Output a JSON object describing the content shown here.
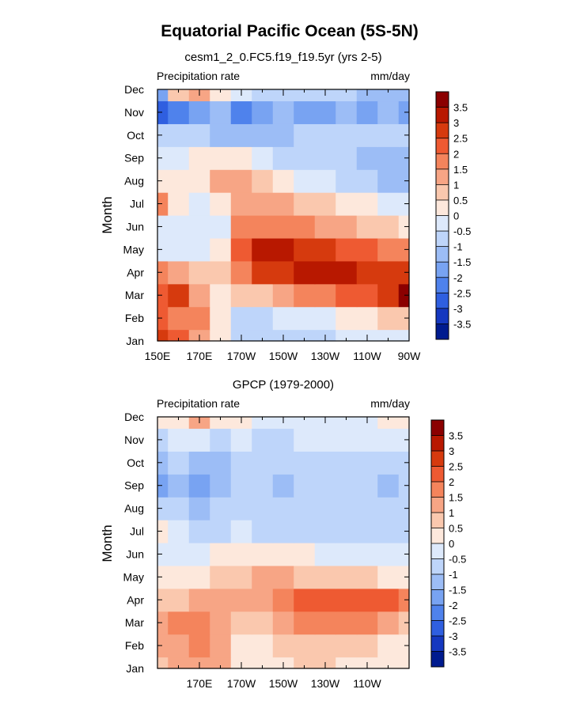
{
  "figure": {
    "title": "Equatorial Pacific Ocean (5S-5N)"
  },
  "colorbar": {
    "levels": [
      "3.5",
      "3",
      "2.5",
      "2",
      "1.5",
      "1",
      "0.5",
      "0",
      "-0.5",
      "-1",
      "-1.5",
      "-2",
      "-2.5",
      "-3",
      "-3.5"
    ],
    "colors": [
      "#8b0000",
      "#b81800",
      "#d63a0e",
      "#ee5a32",
      "#f4845c",
      "#f7a585",
      "#fac8ae",
      "#fde8dc",
      "#dde9fb",
      "#bed5fa",
      "#9cbdf6",
      "#78a3f2",
      "#4f82ec",
      "#2f5fe0",
      "#1538c0",
      "#001b8f"
    ]
  },
  "chart_data": [
    {
      "type": "heatmap",
      "subtitle": "cesm1_2_0.FC5.f19_f19.5yr (yrs 2-5)",
      "left_label": "Precipitation rate",
      "right_label": "mm/day",
      "ylabel": "Month",
      "xlabel": "",
      "x_tick_labels": [
        "150E",
        "170E",
        "170W",
        "150W",
        "130W",
        "110W",
        "90W"
      ],
      "x_ticks_deg_east": [
        150,
        170,
        190,
        210,
        230,
        250,
        270
      ],
      "xlim_deg_east": [
        150,
        270
      ],
      "y_tick_labels": [
        "Jan",
        "Feb",
        "Mar",
        "Apr",
        "May",
        "Jun",
        "Jul",
        "Aug",
        "Sep",
        "Oct",
        "Nov",
        "Dec"
      ],
      "ylim_month_index": [
        0,
        11
      ],
      "grid_x_deg_east": [
        150,
        160,
        170,
        180,
        190,
        200,
        210,
        220,
        230,
        240,
        250,
        260,
        270
      ],
      "grid_y_months": [
        "Jan",
        "Feb",
        "Mar",
        "Apr",
        "May",
        "Jun",
        "Jul",
        "Aug",
        "Sep",
        "Oct",
        "Nov",
        "Dec"
      ],
      "anomaly_mm_per_day": [
        [
          2.6,
          2.4,
          1.1,
          0.3,
          -0.6,
          -0.9,
          -0.9,
          -0.8,
          -0.6,
          -0.5,
          -0.4,
          -0.3,
          -0.3
        ],
        [
          2.3,
          1.8,
          1.6,
          0.2,
          -0.6,
          -0.6,
          -0.4,
          -0.3,
          -0.2,
          0.0,
          0.3,
          0.5,
          0.6
        ],
        [
          2.1,
          2.5,
          1.0,
          0.4,
          0.6,
          0.8,
          1.2,
          1.5,
          1.8,
          2.0,
          2.3,
          2.8,
          3.6
        ],
        [
          1.6,
          1.1,
          0.6,
          0.5,
          1.8,
          2.6,
          2.9,
          3.0,
          3.3,
          3.0,
          2.7,
          2.6,
          2.6
        ],
        [
          -0.3,
          -0.3,
          -0.2,
          0.4,
          2.4,
          3.3,
          3.2,
          2.9,
          2.6,
          2.3,
          2.0,
          1.8,
          1.6
        ],
        [
          -0.3,
          -0.4,
          -0.3,
          -0.2,
          1.5,
          1.9,
          1.7,
          1.6,
          1.4,
          1.2,
          0.9,
          0.6,
          0.3
        ],
        [
          1.6,
          0.2,
          -0.4,
          0.4,
          1.4,
          1.3,
          1.1,
          0.8,
          0.6,
          0.4,
          0.1,
          -0.2,
          -0.4
        ],
        [
          0.3,
          0.3,
          0.4,
          1.1,
          1.0,
          0.5,
          0.0,
          -0.4,
          -0.5,
          -0.6,
          -0.9,
          -1.1,
          -1.2
        ],
        [
          -0.2,
          -0.3,
          0.0,
          0.3,
          0.1,
          -0.4,
          -0.8,
          -0.9,
          -1.0,
          -0.9,
          -1.3,
          -1.3,
          -1.2
        ],
        [
          -1.0,
          -0.9,
          -1.0,
          -1.1,
          -1.2,
          -1.2,
          -1.1,
          -1.0,
          -1.0,
          -0.9,
          -0.8,
          -0.9,
          -0.9
        ],
        [
          -2.7,
          -2.2,
          -1.7,
          -1.5,
          -2.1,
          -1.6,
          -1.5,
          -1.6,
          -1.6,
          -1.5,
          -1.6,
          -1.5,
          -1.6
        ],
        [
          -1.6,
          0.6,
          1.3,
          0.0,
          -0.5,
          -0.8,
          -0.9,
          -1.0,
          -1.0,
          -1.0,
          -1.2,
          -1.4,
          -1.4
        ]
      ]
    },
    {
      "type": "heatmap",
      "subtitle": "GPCP (1979-2000)",
      "left_label": "Precipitation rate",
      "right_label": "mm/day",
      "ylabel": "Month",
      "xlabel": "",
      "x_tick_labels": [
        "170E",
        "170W",
        "150W",
        "130W",
        "110W"
      ],
      "x_ticks_deg_east": [
        170,
        190,
        210,
        230,
        250
      ],
      "xlim_deg_east": [
        150,
        270
      ],
      "y_tick_labels": [
        "Jan",
        "Feb",
        "Mar",
        "Apr",
        "May",
        "Jun",
        "Jul",
        "Aug",
        "Sep",
        "Oct",
        "Nov",
        "Dec"
      ],
      "ylim_month_index": [
        0,
        11
      ],
      "grid_x_deg_east": [
        150,
        160,
        170,
        180,
        190,
        200,
        210,
        220,
        230,
        240,
        250,
        260,
        270
      ],
      "grid_y_months": [
        "Jan",
        "Feb",
        "Mar",
        "Apr",
        "May",
        "Jun",
        "Jul",
        "Aug",
        "Sep",
        "Oct",
        "Nov",
        "Dec"
      ],
      "anomaly_mm_per_day": [
        [
          0.9,
          1.1,
          1.3,
          1.1,
          0.4,
          0.3,
          0.4,
          0.6,
          0.5,
          0.4,
          0.2,
          0.1,
          0.0
        ],
        [
          1.1,
          1.4,
          1.6,
          1.1,
          0.3,
          0.4,
          0.7,
          0.9,
          0.9,
          0.8,
          0.6,
          0.4,
          0.2
        ],
        [
          1.2,
          1.6,
          1.5,
          1.3,
          0.6,
          0.9,
          1.3,
          1.5,
          1.6,
          1.7,
          1.5,
          1.4,
          0.9
        ],
        [
          0.8,
          0.9,
          1.0,
          1.0,
          1.0,
          1.2,
          1.6,
          2.0,
          2.3,
          2.3,
          2.1,
          2.2,
          1.5
        ],
        [
          0.2,
          0.3,
          0.4,
          0.6,
          0.9,
          1.1,
          1.0,
          0.9,
          0.8,
          0.7,
          0.5,
          0.4,
          0.2
        ],
        [
          -0.3,
          -0.2,
          -0.2,
          0.1,
          0.3,
          0.2,
          0.1,
          0.0,
          -0.1,
          -0.2,
          -0.3,
          -0.4,
          -0.5
        ],
        [
          0.2,
          -0.5,
          -0.8,
          -0.6,
          -0.4,
          -0.6,
          -0.7,
          -0.7,
          -0.7,
          -0.8,
          -0.8,
          -0.9,
          -0.9
        ],
        [
          -0.6,
          -1.0,
          -1.1,
          -1.0,
          -0.9,
          -0.9,
          -0.8,
          -0.8,
          -0.7,
          -0.7,
          -0.8,
          -1.0,
          -0.7
        ],
        [
          -1.8,
          -1.4,
          -1.7,
          -1.3,
          -0.9,
          -1.0,
          -1.1,
          -1.0,
          -1.0,
          -0.9,
          -0.7,
          -1.1,
          -0.7
        ],
        [
          -1.1,
          -1.0,
          -1.1,
          -1.1,
          -0.8,
          -0.9,
          -1.0,
          -1.0,
          -0.9,
          -0.8,
          -0.6,
          -0.8,
          -0.6
        ],
        [
          -0.7,
          -0.5,
          -0.5,
          -0.6,
          -0.5,
          -0.6,
          -0.6,
          -0.5,
          -0.5,
          -0.4,
          -0.3,
          -0.3,
          -0.2
        ],
        [
          0.2,
          0.3,
          1.2,
          0.2,
          0.1,
          -0.1,
          -0.1,
          -0.2,
          -0.2,
          -0.2,
          -0.1,
          0.0,
          0.0
        ]
      ]
    }
  ]
}
